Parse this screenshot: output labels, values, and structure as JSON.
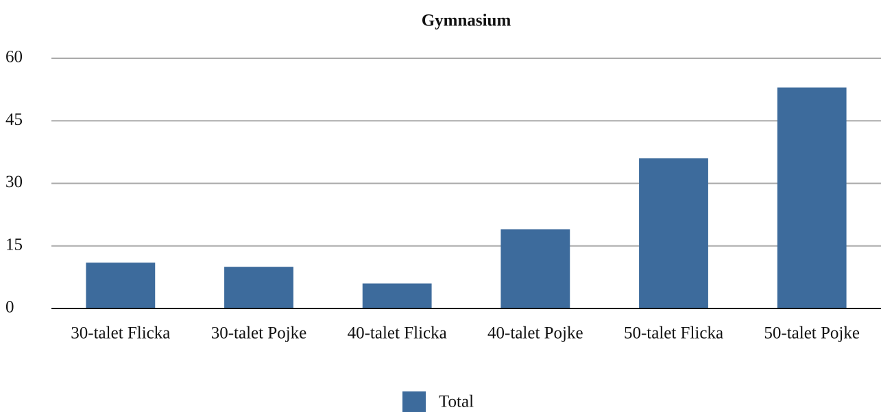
{
  "chart_data": {
    "type": "bar",
    "title": "Gymnasium",
    "categories": [
      "30-talet Flicka",
      "30-talet Pojke",
      "40-talet Flicka",
      "40-talet Pojke",
      "50-talet Flicka",
      "50-talet Pojke"
    ],
    "series": [
      {
        "name": "Total",
        "color": "#3d6b9c",
        "values": [
          11,
          10,
          6,
          19,
          36,
          53
        ]
      }
    ],
    "ylim": [
      0,
      60
    ],
    "yticks": [
      0,
      15,
      30,
      45,
      60
    ],
    "grid": true,
    "legend": "bottom"
  }
}
